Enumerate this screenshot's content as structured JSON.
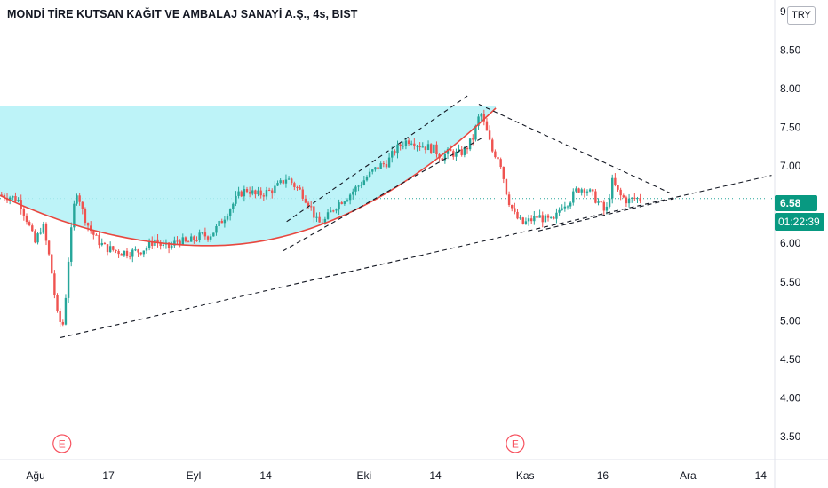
{
  "header": {
    "title": "MONDİ TİRE KUTSAN KAĞIT VE AMBALAJ SANAYİ A.Ş., 4s, BIST",
    "currency": "TRY"
  },
  "price_badge": {
    "last_price": "6.58",
    "countdown": "01:22:39"
  },
  "colors": {
    "up": "#26a69a",
    "down": "#ef5350",
    "highlight": "#b2f1f7",
    "curve": "#e8473f",
    "accent": "#089981"
  },
  "chart_data": {
    "type": "candlestick",
    "title": "MONDİ TİRE KUTSAN KAĞIT VE AMBALAJ SANAYİ A.Ş., 4s, BIST",
    "y_axis": {
      "ticks": [
        3.5,
        4.0,
        4.5,
        5.0,
        5.5,
        6.0,
        6.5,
        7.0,
        7.5,
        8.0,
        8.5,
        9.0
      ],
      "tick_labels": [
        "3.50",
        "4.00",
        "4.50",
        "5.00",
        "5.50",
        "6.00",
        "6.50",
        "7.00",
        "7.50",
        "8.00",
        "8.50",
        "9"
      ],
      "range": [
        3.2,
        9.15
      ]
    },
    "x_axis": {
      "tick_labels": [
        "Ağu",
        "17",
        "Eyl",
        "14",
        "Eki",
        "14",
        "Kas",
        "16",
        "Ara",
        "14"
      ],
      "range": [
        0,
        100
      ]
    },
    "events": [
      "E",
      "E"
    ],
    "last_price": 6.58,
    "rounding_bottom_zone": {
      "y_top": 7.78
    },
    "price_path": [
      [
        0,
        6.63
      ],
      [
        1.5,
        6.6
      ],
      [
        2.5,
        6.55
      ],
      [
        3.5,
        6.3
      ],
      [
        4.5,
        6.0
      ],
      [
        5.5,
        6.25
      ],
      [
        6.5,
        5.75
      ],
      [
        7.5,
        5.0
      ],
      [
        8.2,
        4.95
      ],
      [
        8.8,
        5.75
      ],
      [
        9.5,
        6.45
      ],
      [
        10.0,
        6.72
      ],
      [
        10.5,
        6.45
      ],
      [
        11.5,
        6.2
      ],
      [
        12.5,
        6.05
      ],
      [
        13.5,
        5.95
      ],
      [
        15,
        5.9
      ],
      [
        16.5,
        5.88
      ],
      [
        18,
        5.9
      ],
      [
        19,
        5.95
      ],
      [
        20,
        6.05
      ],
      [
        21,
        5.95
      ],
      [
        22,
        5.95
      ],
      [
        23,
        6.05
      ],
      [
        24,
        6.0
      ],
      [
        25,
        6.05
      ],
      [
        26,
        6.1
      ],
      [
        27,
        6.1
      ],
      [
        28,
        6.2
      ],
      [
        29,
        6.35
      ],
      [
        30,
        6.5
      ],
      [
        31,
        6.65
      ],
      [
        32,
        6.7
      ],
      [
        33,
        6.62
      ],
      [
        34,
        6.65
      ],
      [
        35,
        6.68
      ],
      [
        36,
        6.75
      ],
      [
        37,
        6.85
      ],
      [
        38,
        6.75
      ],
      [
        39,
        6.65
      ],
      [
        40,
        6.5
      ],
      [
        41,
        6.25
      ],
      [
        42,
        6.3
      ],
      [
        43,
        6.45
      ],
      [
        44,
        6.55
      ],
      [
        45,
        6.62
      ],
      [
        46,
        6.72
      ],
      [
        47,
        6.82
      ],
      [
        48,
        6.92
      ],
      [
        49,
        7.0
      ],
      [
        50,
        7.05
      ],
      [
        51,
        7.2
      ],
      [
        52,
        7.3
      ],
      [
        53,
        7.35
      ],
      [
        54,
        7.28
      ],
      [
        55,
        7.25
      ],
      [
        56,
        7.22
      ],
      [
        57,
        7.12
      ],
      [
        58,
        7.18
      ],
      [
        59,
        7.15
      ],
      [
        60,
        7.2
      ],
      [
        61,
        7.35
      ],
      [
        62,
        7.7
      ],
      [
        62.8,
        7.45
      ],
      [
        63.5,
        7.2
      ],
      [
        64.5,
        7.1
      ],
      [
        65.5,
        6.6
      ],
      [
        66.5,
        6.35
      ],
      [
        67.5,
        6.25
      ],
      [
        68.5,
        6.3
      ],
      [
        69.5,
        6.35
      ],
      [
        70.5,
        6.3
      ],
      [
        71.5,
        6.28
      ],
      [
        72.5,
        6.5
      ],
      [
        73.5,
        6.55
      ],
      [
        74.5,
        6.7
      ],
      [
        75.5,
        6.72
      ],
      [
        76.5,
        6.62
      ],
      [
        77.5,
        6.5
      ],
      [
        78.2,
        6.38
      ],
      [
        79,
        6.8
      ],
      [
        80,
        6.62
      ],
      [
        81,
        6.55
      ],
      [
        82,
        6.58
      ],
      [
        82.8,
        6.58
      ]
    ],
    "trendlines": [
      {
        "name": "rising-support",
        "from": [
          7.8,
          4.78
        ],
        "to": [
          99.6,
          6.88
        ]
      },
      {
        "name": "falling-resistance",
        "from": [
          61.8,
          7.8
        ],
        "to": [
          86.5,
          6.65
        ]
      },
      {
        "name": "lower-support",
        "from": [
          69.5,
          6.16
        ],
        "to": [
          87.0,
          6.58
        ]
      },
      {
        "name": "channel-upper",
        "from": [
          37.0,
          6.28
        ],
        "to": [
          60.5,
          7.92
        ]
      },
      {
        "name": "channel-lower",
        "from": [
          36.5,
          5.9
        ],
        "to": [
          62.5,
          7.38
        ]
      }
    ],
    "cup_curve": {
      "start": [
        0,
        6.62
      ],
      "bottom_x": 27,
      "bottom_y": 5.97,
      "end": [
        64,
        7.75
      ]
    }
  }
}
